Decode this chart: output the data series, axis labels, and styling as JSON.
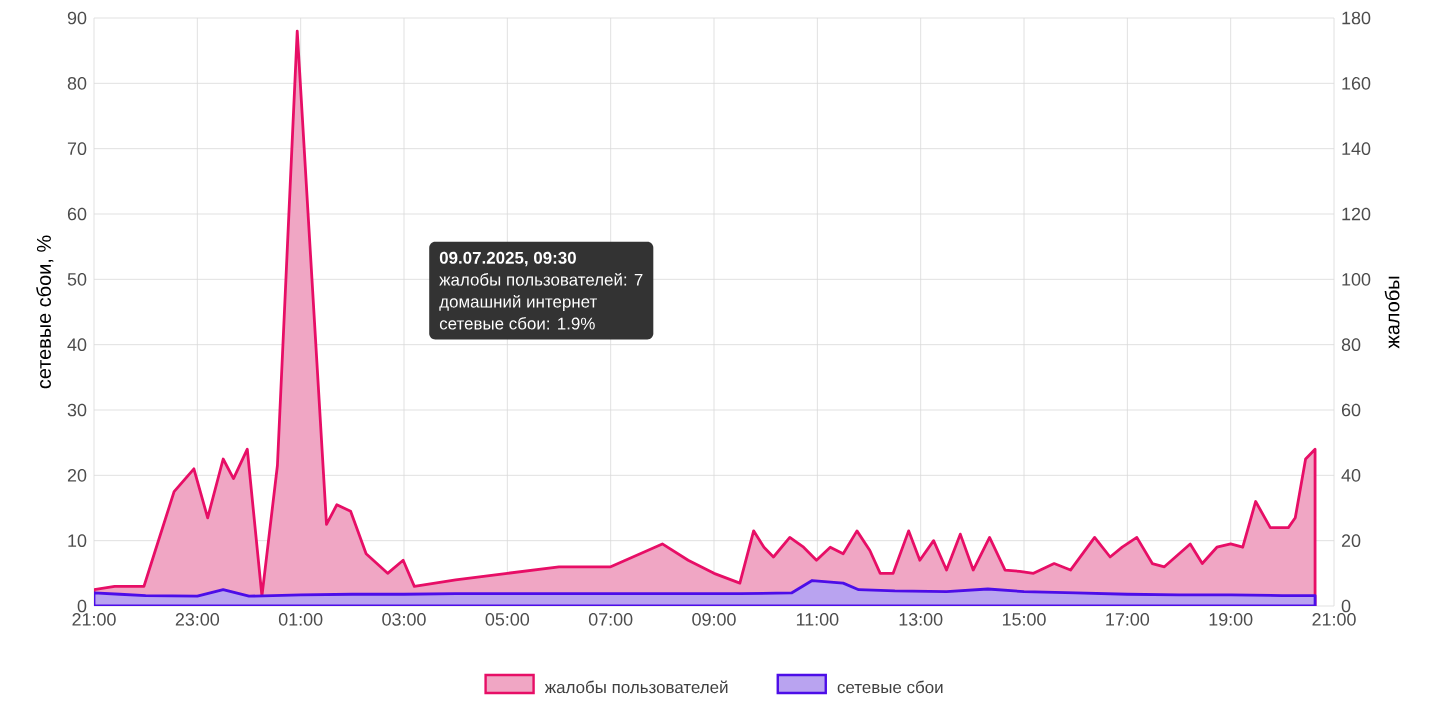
{
  "chart_data": {
    "type": "area",
    "ylabel": "сетевые сбои, %",
    "y2label": "жалобы",
    "xlim": [
      "2025-07-08T21:00",
      "2025-07-09T21:00"
    ],
    "ylim": [
      0,
      90
    ],
    "y2lim": [
      0,
      180
    ],
    "xticks": [
      {
        "value": "2025-07-08T21:00",
        "label": "21:00"
      },
      {
        "value": "2025-07-08T23:00",
        "label": "23:00"
      },
      {
        "value": "2025-07-09T01:00",
        "label": "01:00"
      },
      {
        "value": "2025-07-09T03:00",
        "label": "03:00"
      },
      {
        "value": "2025-07-09T05:00",
        "label": "05:00"
      },
      {
        "value": "2025-07-09T07:00",
        "label": "07:00"
      },
      {
        "value": "2025-07-09T09:00",
        "label": "09:00"
      },
      {
        "value": "2025-07-09T11:00",
        "label": "11:00"
      },
      {
        "value": "2025-07-09T13:00",
        "label": "13:00"
      },
      {
        "value": "2025-07-09T15:00",
        "label": "15:00"
      },
      {
        "value": "2025-07-09T17:00",
        "label": "17:00"
      },
      {
        "value": "2025-07-09T19:00",
        "label": "19:00"
      },
      {
        "value": "2025-07-09T21:00",
        "label": "21:00"
      }
    ],
    "yticks": [
      0,
      10,
      20,
      30,
      40,
      50,
      60,
      70,
      80,
      90
    ],
    "y2ticks": [
      0,
      20,
      40,
      60,
      80,
      100,
      120,
      140,
      160,
      180
    ],
    "grid": true,
    "legend": "bottom",
    "marker": "none",
    "line_style": "solid",
    "series": [
      {
        "name": "жалобы пользователей",
        "color": "#f0a6c4",
        "axis": "y2",
        "x": [
          "2025-07-08T21:00",
          "2025-07-08T21:24",
          "2025-07-08T21:30",
          "2025-07-08T21:45",
          "2025-07-08T21:58",
          "2025-07-08T22:10",
          "2025-07-08T22:33",
          "2025-07-08T22:56",
          "2025-07-08T23:12",
          "2025-07-08T23:30",
          "2025-07-08T23:42",
          "2025-07-08T23:58",
          "2025-07-09T00:15",
          "2025-07-09T00:33",
          "2025-07-09T00:56",
          "2025-07-09T01:30",
          "2025-07-09T01:42",
          "2025-07-09T01:58",
          "2025-07-09T02:16",
          "2025-07-09T02:41",
          "2025-07-09T02:59",
          "2025-07-09T03:12",
          "2025-07-09T04:00",
          "2025-07-09T05:00",
          "2025-07-09T06:00",
          "2025-07-09T07:00",
          "2025-07-09T08:00",
          "2025-07-09T08:30",
          "2025-07-09T09:00",
          "2025-07-09T09:30",
          "2025-07-09T09:46",
          "2025-07-09T09:58",
          "2025-07-09T10:09",
          "2025-07-09T10:28",
          "2025-07-09T10:44",
          "2025-07-09T10:59",
          "2025-07-09T11:15",
          "2025-07-09T11:30",
          "2025-07-09T11:46",
          "2025-07-09T12:01",
          "2025-07-09T12:13",
          "2025-07-09T12:28",
          "2025-07-09T12:46",
          "2025-07-09T12:59",
          "2025-07-09T13:15",
          "2025-07-09T13:30",
          "2025-07-09T13:46",
          "2025-07-09T14:01",
          "2025-07-09T14:20",
          "2025-07-09T14:38",
          "2025-07-09T14:55",
          "2025-07-09T15:11",
          "2025-07-09T15:35",
          "2025-07-09T15:54",
          "2025-07-09T16:22",
          "2025-07-09T16:40",
          "2025-07-09T16:54",
          "2025-07-09T17:11",
          "2025-07-09T17:29",
          "2025-07-09T17:43",
          "2025-07-09T18:13",
          "2025-07-09T18:27",
          "2025-07-09T18:44",
          "2025-07-09T19:00",
          "2025-07-09T19:14",
          "2025-07-09T19:29",
          "2025-07-09T19:46",
          "2025-07-09T20:07",
          "2025-07-09T20:15",
          "2025-07-09T20:27",
          "2025-07-09T20:38"
        ],
        "values": [
          5,
          6,
          6,
          null,
          6,
          16,
          35,
          42,
          27,
          45,
          39,
          48,
          3,
          43,
          176,
          25,
          31,
          29,
          16,
          10,
          14,
          6,
          8,
          10,
          12,
          12,
          19,
          14,
          10,
          7,
          23,
          18,
          15,
          21,
          18,
          14,
          18,
          16,
          23,
          17,
          10,
          10,
          23,
          14,
          20,
          11,
          22,
          11,
          21,
          11,
          10.6,
          10,
          13,
          11,
          21,
          15,
          18,
          21,
          13,
          12,
          19,
          13,
          18,
          19,
          18,
          32,
          24,
          24,
          27,
          45,
          48
        ]
      },
      {
        "name": "сетевые сбои",
        "color": "#b9a3f0",
        "axis": "y",
        "x": [
          "2025-07-08T21:00",
          "2025-07-08T21:30",
          "2025-07-08T22:00",
          "2025-07-08T23:00",
          "2025-07-08T23:30",
          "2025-07-09T00:00",
          "2025-07-09T01:00",
          "2025-07-09T02:00",
          "2025-07-09T03:00",
          "2025-07-09T04:00",
          "2025-07-09T06:00",
          "2025-07-09T08:00",
          "2025-07-09T09:30",
          "2025-07-09T10:30",
          "2025-07-09T10:54",
          "2025-07-09T11:30",
          "2025-07-09T11:48",
          "2025-07-09T12:30",
          "2025-07-09T13:30",
          "2025-07-09T14:18",
          "2025-07-09T15:00",
          "2025-07-09T16:00",
          "2025-07-09T17:00",
          "2025-07-09T18:00",
          "2025-07-09T19:00",
          "2025-07-09T20:00",
          "2025-07-09T20:38"
        ],
        "values": [
          2.0,
          1.8,
          1.6,
          1.5,
          2.5,
          1.5,
          1.7,
          1.8,
          1.8,
          1.9,
          1.9,
          1.9,
          1.9,
          2.0,
          3.9,
          3.5,
          2.5,
          2.3,
          2.2,
          2.6,
          2.2,
          2.0,
          1.8,
          1.7,
          1.7,
          1.6,
          1.6
        ]
      }
    ],
    "annotations": [
      "09.07.2025, 09:30",
      "жалобы пользователей: 7",
      "домашний интернет",
      "сетевые сбои: 1.9%"
    ]
  }
}
